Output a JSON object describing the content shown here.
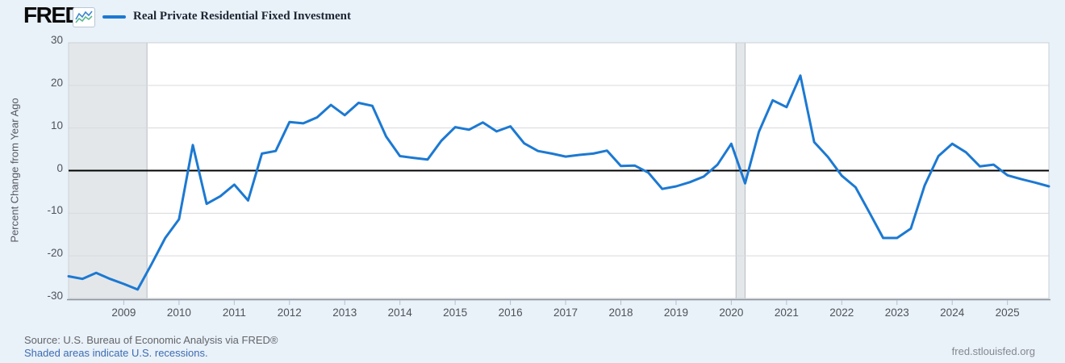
{
  "header": {
    "logo_text": "FRED",
    "logo_registered": "®",
    "logo_icon": "fred-sparkline-icon",
    "legend_label": "Real Private Residential Fixed Investment"
  },
  "footer": {
    "source_text": "Source: U.S. Bureau of Economic Analysis via FRED®",
    "recession_note": "Shaded areas indicate U.S. recessions.",
    "site_link": "fred.stlouisfed.org"
  },
  "colors": {
    "background": "#e9f1f9",
    "plot_background": "#ffffff",
    "series_blue": "#1c79d2",
    "recession_band": "#e4e7ea",
    "recession_band_edge": "#b7bdc3",
    "gridline": "#d8dadc",
    "zero_line": "#000000",
    "plot_border": "#ccd1d6",
    "axis_line": "#8d939a",
    "axis_tick": "#b3c0cd",
    "tick_text": "#4f5357",
    "link_blue": "#3c6cb0"
  },
  "chart_data": {
    "type": "line",
    "title": "Real Private Residential Fixed Investment",
    "xlabel": "",
    "ylabel": "Percent Change from Year Ago",
    "units": "percent change from year ago",
    "frequency": "quarterly",
    "grid": true,
    "zero_line": true,
    "legend_position": "top-left",
    "ylim": [
      -30,
      30
    ],
    "yticks": [
      30,
      20,
      10,
      0,
      -10,
      -20,
      -30
    ],
    "xlim": [
      2008.0,
      2025.75
    ],
    "xticks": [
      2009,
      2010,
      2011,
      2012,
      2013,
      2014,
      2015,
      2016,
      2017,
      2018,
      2019,
      2020,
      2021,
      2022,
      2023,
      2024,
      2025
    ],
    "recession_bands": [
      {
        "start": 2008.0,
        "end": 2009.42
      },
      {
        "start": 2020.085,
        "end": 2020.25
      }
    ],
    "series": [
      {
        "name": "Real Private Residential Fixed Investment",
        "color": "#1c79d2",
        "x": [
          2008.0,
          2008.25,
          2008.5,
          2008.75,
          2009.0,
          2009.25,
          2009.5,
          2009.75,
          2010.0,
          2010.25,
          2010.5,
          2010.75,
          2011.0,
          2011.25,
          2011.5,
          2011.75,
          2012.0,
          2012.25,
          2012.5,
          2012.75,
          2013.0,
          2013.25,
          2013.5,
          2013.75,
          2014.0,
          2014.25,
          2014.5,
          2014.75,
          2015.0,
          2015.25,
          2015.5,
          2015.75,
          2016.0,
          2016.25,
          2016.5,
          2016.75,
          2017.0,
          2017.25,
          2017.5,
          2017.75,
          2018.0,
          2018.25,
          2018.5,
          2018.75,
          2019.0,
          2019.25,
          2019.5,
          2019.75,
          2020.0,
          2020.25,
          2020.5,
          2020.75,
          2021.0,
          2021.25,
          2021.5,
          2021.75,
          2022.0,
          2022.25,
          2022.5,
          2022.75,
          2023.0,
          2023.25,
          2023.5,
          2023.75,
          2024.0,
          2024.25,
          2024.5,
          2024.75,
          2025.0,
          2025.25,
          2025.5,
          2025.75
        ],
        "values": [
          -24.8,
          -25.4,
          -24.0,
          -25.4,
          -26.6,
          -27.9,
          -22.0,
          -15.8,
          -11.4,
          6.0,
          -7.8,
          -6.0,
          -3.3,
          -7.0,
          4.0,
          4.6,
          11.4,
          11.1,
          12.5,
          15.4,
          13.0,
          15.9,
          15.2,
          8.0,
          3.4,
          3.0,
          2.6,
          7.0,
          10.2,
          9.6,
          11.3,
          9.2,
          10.4,
          6.4,
          4.6,
          4.0,
          3.3,
          3.7,
          4.0,
          4.7,
          1.1,
          1.2,
          -0.5,
          -4.3,
          -3.7,
          -2.7,
          -1.4,
          1.4,
          6.3,
          -3.0,
          9.1,
          16.5,
          14.9,
          22.3,
          6.7,
          3.2,
          -1.2,
          -3.9,
          -9.8,
          -15.8,
          -15.8,
          -13.6,
          -3.5,
          3.4,
          6.3,
          4.3,
          1.0,
          1.4,
          -1.1,
          -2.0,
          -2.8,
          -3.7
        ]
      }
    ]
  }
}
